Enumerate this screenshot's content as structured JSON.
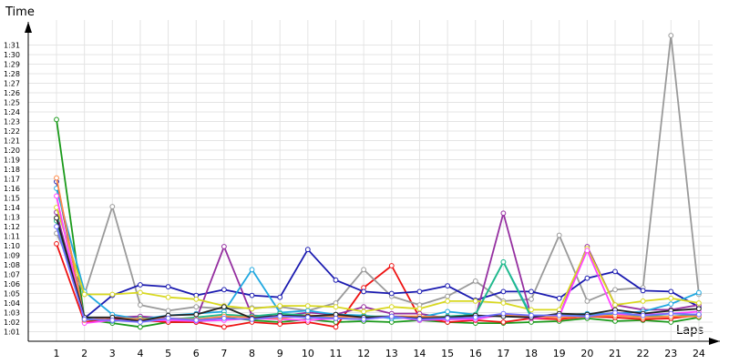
{
  "chart_data": {
    "type": "line",
    "title": "",
    "ylabel": "Time",
    "xlabel": "Laps",
    "x": [
      1,
      2,
      3,
      4,
      5,
      6,
      7,
      8,
      9,
      10,
      11,
      12,
      13,
      14,
      15,
      16,
      17,
      18,
      19,
      20,
      21,
      22,
      23,
      24
    ],
    "y_ticks": [
      "1:01",
      "1:02",
      "1:03",
      "1:04",
      "1:05",
      "1:06",
      "1:07",
      "1:08",
      "1:09",
      "1:10",
      "1:11",
      "1:12",
      "1:13",
      "1:14",
      "1:15",
      "1:16",
      "1:17",
      "1:18",
      "1:19",
      "1:20",
      "1:21",
      "1:22",
      "1:23",
      "1:24",
      "1:25",
      "1:26",
      "1:27",
      "1:28",
      "1:29",
      "1:30",
      "1:31"
    ],
    "ylim_seconds": [
      60,
      92
    ],
    "grid": true,
    "series": [
      {
        "color": "#1a9a1a",
        "values": [
          83.2,
          62.3,
          61.9,
          61.5,
          62.0,
          62.0,
          62.5,
          62.2,
          62.0,
          62.3,
          62.0,
          62.1,
          62.0,
          62.2,
          62.0,
          61.9,
          61.9,
          62.0,
          62.1,
          62.4,
          62.1,
          62.2,
          62.0,
          62.5
        ]
      },
      {
        "color": "#ee1111",
        "values": [
          70.2,
          62.0,
          62.3,
          62.2,
          62.0,
          62.0,
          61.5,
          62.0,
          61.8,
          62.0,
          61.5,
          65.6,
          67.9,
          62.5,
          62.0,
          62.2,
          62.0,
          62.4,
          62.3,
          62.6,
          62.5,
          62.3,
          62.4,
          62.7
        ]
      },
      {
        "color": "#9a9a9a",
        "values": [
          71.3,
          64.9,
          74.1,
          63.8,
          63.2,
          63.6,
          63.4,
          63.5,
          63.6,
          63.2,
          64.0,
          67.5,
          64.7,
          63.8,
          64.7,
          66.3,
          64.2,
          64.4,
          71.1,
          64.2,
          65.4,
          65.6,
          92.0,
          64.9
        ]
      },
      {
        "color": "#1a1ab0",
        "values": [
          76.7,
          62.4,
          64.8,
          65.9,
          65.7,
          64.8,
          65.4,
          64.8,
          64.6,
          69.6,
          66.4,
          65.2,
          65.0,
          65.2,
          65.8,
          64.3,
          65.2,
          65.2,
          64.5,
          66.6,
          67.3,
          65.3,
          65.2,
          63.6
        ]
      },
      {
        "color": "#952fa0",
        "values": [
          73.5,
          62.2,
          62.5,
          62.6,
          62.4,
          62.3,
          69.9,
          62.7,
          62.6,
          63.0,
          62.8,
          63.6,
          62.9,
          62.9,
          62.4,
          62.5,
          73.4,
          62.6,
          62.6,
          69.9,
          63.8,
          63.3,
          63.3,
          63.8
        ]
      },
      {
        "color": "#20a8e0",
        "values": [
          76.0,
          65.2,
          62.8,
          62.3,
          62.7,
          62.9,
          63.1,
          67.5,
          63.0,
          63.2,
          62.8,
          62.7,
          62.4,
          62.5,
          63.1,
          62.8,
          68.3,
          62.7,
          62.7,
          62.9,
          62.9,
          63.1,
          63.9,
          65.1
        ]
      },
      {
        "color": "#d8d820",
        "values": [
          74.0,
          64.9,
          64.9,
          65.1,
          64.6,
          64.4,
          63.7,
          63.4,
          63.7,
          63.7,
          63.6,
          63.1,
          63.6,
          63.4,
          64.2,
          64.2,
          64.0,
          63.3,
          63.3,
          69.7,
          63.8,
          64.2,
          64.5,
          64.0
        ]
      },
      {
        "color": "#22bb88",
        "values": [
          72.6,
          62.4,
          62.1,
          62.4,
          62.3,
          62.5,
          62.8,
          62.6,
          62.9,
          62.7,
          62.5,
          62.6,
          62.6,
          62.5,
          62.6,
          62.8,
          68.3,
          62.5,
          62.7,
          62.8,
          62.7,
          62.7,
          62.6,
          62.8
        ]
      },
      {
        "color": "#ff44ff",
        "values": [
          75.2,
          61.9,
          62.2,
          62.1,
          62.2,
          62.1,
          62.2,
          62.4,
          62.3,
          62.2,
          62.4,
          62.3,
          62.6,
          62.2,
          62.3,
          62.3,
          62.8,
          62.4,
          62.6,
          69.5,
          62.8,
          62.8,
          62.9,
          63.1
        ]
      },
      {
        "color": "#ff8844",
        "values": [
          77.1,
          62.2,
          62.5,
          62.3,
          62.4,
          62.3,
          62.6,
          62.5,
          62.4,
          62.7,
          62.6,
          62.5,
          62.6,
          62.6,
          62.5,
          62.6,
          62.7,
          62.6,
          62.5,
          62.6,
          62.7,
          62.5,
          62.6,
          62.6
        ]
      },
      {
        "color": "#222222",
        "values": [
          72.9,
          62.5,
          62.5,
          62.1,
          62.7,
          62.8,
          63.6,
          62.4,
          62.7,
          62.6,
          62.8,
          62.5,
          62.6,
          62.4,
          62.5,
          62.7,
          62.6,
          62.5,
          62.9,
          62.8,
          63.3,
          62.9,
          63.2,
          63.4
        ]
      },
      {
        "color": "#7070ff",
        "values": [
          72.0,
          62.3,
          62.2,
          62.0,
          62.4,
          62.2,
          62.4,
          62.3,
          62.6,
          62.5,
          62.4,
          62.3,
          62.6,
          62.3,
          62.4,
          62.5,
          62.9,
          62.7,
          62.7,
          62.6,
          63.0,
          62.7,
          62.9,
          62.8
        ]
      }
    ]
  }
}
